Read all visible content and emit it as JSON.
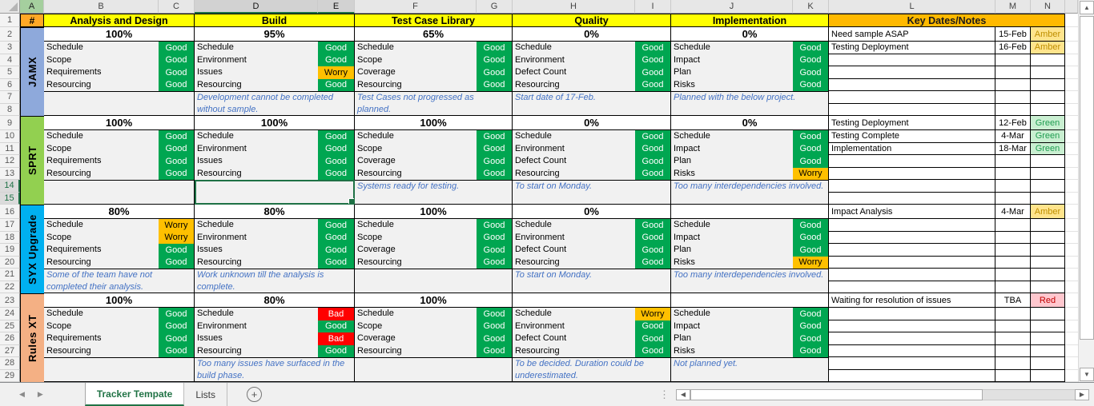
{
  "columns": [
    "A",
    "B",
    "C",
    "D",
    "E",
    "F",
    "G",
    "H",
    "I",
    "J",
    "K",
    "L",
    "M",
    "N"
  ],
  "row_numbers": [
    1,
    2,
    3,
    4,
    5,
    6,
    7,
    8,
    9,
    10,
    11,
    12,
    13,
    14,
    15,
    16,
    17,
    18,
    19,
    20,
    21,
    22,
    23,
    24,
    25,
    26,
    27,
    28,
    29
  ],
  "selected_columns": [
    "D",
    "E"
  ],
  "selected_rows": [
    14,
    15
  ],
  "selection": {
    "range": "D14:E15",
    "project_index": 1,
    "phase_index": 1
  },
  "header": {
    "hash": "#",
    "phases": [
      "Analysis and Design",
      "Build",
      "Test Case Library",
      "Quality",
      "Implementation"
    ],
    "key_dates": "Key Dates/Notes"
  },
  "colors": {
    "phase_header_bg": "#FFFF00",
    "key_dates_bg": "#FFB900",
    "hash_bg": "#FFA826",
    "good_bg": "#00A651",
    "worry_bg": "#FFC000",
    "bad_bg": "#FF0000",
    "note_text": "#4472C4",
    "amber_pill_bg": "#FFE48C",
    "amber_pill_text": "#BF8F00",
    "green_pill_bg": "#C9EFD1",
    "green_pill_text": "#1F9D50",
    "red_pill_bg": "#FFC7CE",
    "red_pill_text": "#C00000",
    "active_tab_green": "#217346",
    "selection_green": "#1E7145"
  },
  "projects": [
    {
      "name": "JAMX",
      "color": "#8EA9DB",
      "phases": [
        {
          "pct": "100%",
          "items": [
            [
              "Schedule",
              "Good"
            ],
            [
              "Scope",
              "Good"
            ],
            [
              "Requirements",
              "Good"
            ],
            [
              "Resourcing",
              "Good"
            ]
          ],
          "note": ""
        },
        {
          "pct": "95%",
          "items": [
            [
              "Schedule",
              "Good"
            ],
            [
              "Environment",
              "Good"
            ],
            [
              "Issues",
              "Worry"
            ],
            [
              "Resourcing",
              "Good"
            ]
          ],
          "note": "Development cannot be completed without sample."
        },
        {
          "pct": "65%",
          "items": [
            [
              "Schedule",
              "Good"
            ],
            [
              "Scope",
              "Good"
            ],
            [
              "Coverage",
              "Good"
            ],
            [
              "Resourcing",
              "Good"
            ]
          ],
          "note": "Test Cases not progressed as planned."
        },
        {
          "pct": "0%",
          "items": [
            [
              "Schedule",
              "Good"
            ],
            [
              "Environment",
              "Good"
            ],
            [
              "Defect Count",
              "Good"
            ],
            [
              "Resourcing",
              "Good"
            ]
          ],
          "note": "Start date of 17-Feb."
        },
        {
          "pct": "0%",
          "items": [
            [
              "Schedule",
              "Good"
            ],
            [
              "Impact",
              "Good"
            ],
            [
              "Plan",
              "Good"
            ],
            [
              "Risks",
              "Good"
            ]
          ],
          "note": "Planned with the below project."
        }
      ],
      "key_dates": [
        {
          "row": 0,
          "label": "Need sample ASAP",
          "date": "15-Feb",
          "status": "Amber"
        },
        {
          "row": 1,
          "label": "Testing Deployment",
          "date": "16-Feb",
          "status": "Amber"
        }
      ]
    },
    {
      "name": "SPRT",
      "color": "#92D050",
      "phases": [
        {
          "pct": "100%",
          "items": [
            [
              "Schedule",
              "Good"
            ],
            [
              "Scope",
              "Good"
            ],
            [
              "Requirements",
              "Good"
            ],
            [
              "Resourcing",
              "Good"
            ]
          ],
          "note": ""
        },
        {
          "pct": "100%",
          "items": [
            [
              "Schedule",
              "Good"
            ],
            [
              "Environment",
              "Good"
            ],
            [
              "Issues",
              "Good"
            ],
            [
              "Resourcing",
              "Good"
            ]
          ],
          "note": ""
        },
        {
          "pct": "100%",
          "items": [
            [
              "Schedule",
              "Good"
            ],
            [
              "Scope",
              "Good"
            ],
            [
              "Coverage",
              "Good"
            ],
            [
              "Resourcing",
              "Good"
            ]
          ],
          "note": "Systems ready for testing."
        },
        {
          "pct": "0%",
          "items": [
            [
              "Schedule",
              "Good"
            ],
            [
              "Environment",
              "Good"
            ],
            [
              "Defect Count",
              "Good"
            ],
            [
              "Resourcing",
              "Good"
            ]
          ],
          "note": "To start on Monday."
        },
        {
          "pct": "0%",
          "items": [
            [
              "Schedule",
              "Good"
            ],
            [
              "Impact",
              "Good"
            ],
            [
              "Plan",
              "Good"
            ],
            [
              "Risks",
              "Worry"
            ]
          ],
          "note": "Too many interdependencies involved."
        }
      ],
      "key_dates": [
        {
          "row": 0,
          "label": "Testing Deployment",
          "date": "12-Feb",
          "status": "Green"
        },
        {
          "row": 1,
          "label": "Testing Complete",
          "date": "4-Mar",
          "status": "Green"
        },
        {
          "row": 2,
          "label": "Implementation",
          "date": "18-Mar",
          "status": "Green"
        }
      ]
    },
    {
      "name": "SYX Upgrade",
      "color": "#00B0F0",
      "phases": [
        {
          "pct": "80%",
          "items": [
            [
              "Schedule",
              "Worry"
            ],
            [
              "Scope",
              "Worry"
            ],
            [
              "Requirements",
              "Good"
            ],
            [
              "Resourcing",
              "Good"
            ]
          ],
          "note": "Some of the team have not completed their analysis."
        },
        {
          "pct": "80%",
          "items": [
            [
              "Schedule",
              "Good"
            ],
            [
              "Environment",
              "Good"
            ],
            [
              "Issues",
              "Good"
            ],
            [
              "Resourcing",
              "Good"
            ]
          ],
          "note": "Work unknown till the analysis is complete."
        },
        {
          "pct": "100%",
          "items": [
            [
              "Schedule",
              "Good"
            ],
            [
              "Scope",
              "Good"
            ],
            [
              "Coverage",
              "Good"
            ],
            [
              "Resourcing",
              "Good"
            ]
          ],
          "note": ""
        },
        {
          "pct": "0%",
          "items": [
            [
              "Schedule",
              "Good"
            ],
            [
              "Environment",
              "Good"
            ],
            [
              "Defect Count",
              "Good"
            ],
            [
              "Resourcing",
              "Good"
            ]
          ],
          "note": "To start on Monday."
        },
        {
          "pct": "",
          "items": [
            [
              "Schedule",
              "Good"
            ],
            [
              "Impact",
              "Good"
            ],
            [
              "Plan",
              "Good"
            ],
            [
              "Risks",
              "Worry"
            ]
          ],
          "note": "Too many interdependencies involved."
        }
      ],
      "key_dates": [
        {
          "row": 0,
          "label": "Impact Analysis",
          "date": "4-Mar",
          "status": "Amber"
        }
      ]
    },
    {
      "name": "Rules XT",
      "color": "#F4B084",
      "phases": [
        {
          "pct": "100%",
          "items": [
            [
              "Schedule",
              "Good"
            ],
            [
              "Scope",
              "Good"
            ],
            [
              "Requirements",
              "Good"
            ],
            [
              "Resourcing",
              "Good"
            ]
          ],
          "note": ""
        },
        {
          "pct": "80%",
          "items": [
            [
              "Schedule",
              "Bad"
            ],
            [
              "Environment",
              "Good"
            ],
            [
              "Issues",
              "Bad"
            ],
            [
              "Resourcing",
              "Good"
            ]
          ],
          "note": "Too many issues have surfaced in the build phase."
        },
        {
          "pct": "100%",
          "items": [
            [
              "Schedule",
              "Good"
            ],
            [
              "Scope",
              "Good"
            ],
            [
              "Coverage",
              "Good"
            ],
            [
              "Resourcing",
              "Good"
            ]
          ],
          "note": ""
        },
        {
          "pct": "",
          "items": [
            [
              "Schedule",
              "Worry"
            ],
            [
              "Environment",
              "Good"
            ],
            [
              "Defect Count",
              "Good"
            ],
            [
              "Resourcing",
              "Good"
            ]
          ],
          "note": "To be decided. Duration could be underestimated."
        },
        {
          "pct": "",
          "items": [
            [
              "Schedule",
              "Good"
            ],
            [
              "Impact",
              "Good"
            ],
            [
              "Plan",
              "Good"
            ],
            [
              "Risks",
              "Good"
            ]
          ],
          "note": "Not planned yet."
        }
      ],
      "key_dates": [
        {
          "row": 0,
          "label": "Waiting for resolution of issues",
          "date": "TBA",
          "status": "Red"
        }
      ]
    }
  ],
  "tabs": {
    "sheets": [
      {
        "label": "Tracker Tempate",
        "active": true
      },
      {
        "label": "Lists",
        "active": false
      }
    ]
  }
}
